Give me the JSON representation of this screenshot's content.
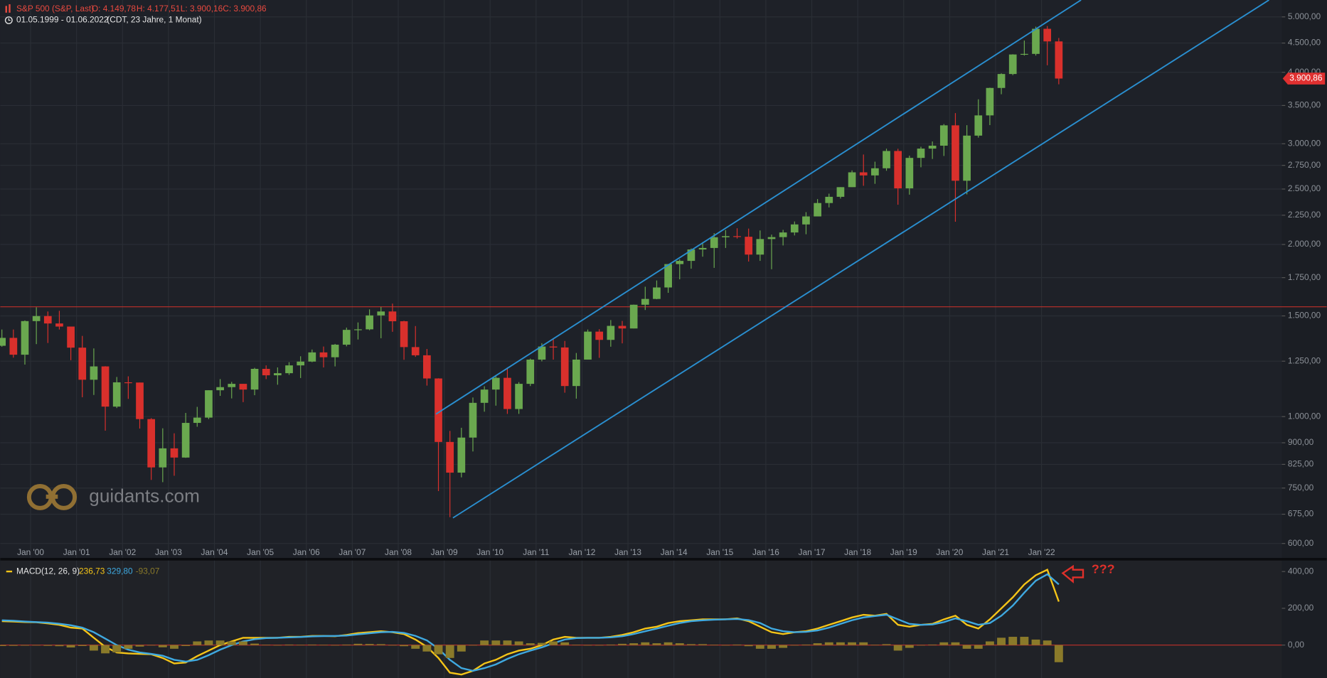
{
  "chart_data": [
    {
      "type": "candlestick",
      "title": "S&P 500 (S&P, Last)",
      "ohlc": [
        {
          "value": 4149.78,
          "label": "O: 4.149,78"
        },
        {
          "value": 4177.51,
          "label": "H: 4.177,51"
        },
        {
          "value": 3900.16,
          "label": "L: 3.900,16"
        },
        {
          "value": 3900.86,
          "label": "C: 3.900,86"
        }
      ],
      "period": "01.05.1999 - 01.06.2022",
      "period_note": "(CDT, 23 Jahre, 1 Monat)",
      "watermark": "guidants.com",
      "log_scale": true,
      "grid": true,
      "up_color": "#6aa84f",
      "down_color": "#d9302c",
      "x": [
        1999.375,
        1999.625,
        1999.875,
        2000.125,
        2000.375,
        2000.625,
        2000.875,
        2001.125,
        2001.375,
        2001.625,
        2001.875,
        2002.125,
        2002.375,
        2002.625,
        2002.875,
        2003.125,
        2003.375,
        2003.625,
        2003.875,
        2004.125,
        2004.375,
        2004.625,
        2004.875,
        2005.125,
        2005.375,
        2005.625,
        2005.875,
        2006.125,
        2006.375,
        2006.625,
        2006.875,
        2007.125,
        2007.375,
        2007.625,
        2007.875,
        2008.125,
        2008.375,
        2008.625,
        2008.875,
        2009.125,
        2009.375,
        2009.625,
        2009.875,
        2010.125,
        2010.375,
        2010.625,
        2010.875,
        2011.125,
        2011.375,
        2011.625,
        2011.875,
        2012.125,
        2012.375,
        2012.625,
        2012.875,
        2013.125,
        2013.375,
        2013.625,
        2013.875,
        2014.125,
        2014.375,
        2014.625,
        2014.875,
        2015.125,
        2015.375,
        2015.625,
        2015.875,
        2016.125,
        2016.375,
        2016.625,
        2016.875,
        2017.125,
        2017.375,
        2017.625,
        2017.875,
        2018.125,
        2018.375,
        2018.625,
        2018.875,
        2019.125,
        2019.375,
        2019.625,
        2019.875,
        2020.125,
        2020.375,
        2020.625,
        2020.875,
        2021.125,
        2021.375,
        2021.625,
        2021.875,
        2022.125,
        2022.375
      ],
      "open": [
        1330,
        1373,
        1283,
        1469,
        1499,
        1455,
        1437,
        1320,
        1160,
        1224,
        1041,
        1148,
        1147,
        990,
        815,
        880,
        848,
        975,
        996,
        1112,
        1126,
        1141,
        1115,
        1212,
        1181,
        1191,
        1229,
        1248,
        1295,
        1270,
        1336,
        1418,
        1421,
        1503,
        1527,
        1468,
        1323,
        1280,
        1166,
        903,
        798,
        919,
        1057,
        1115,
        1169,
        1031,
        1141,
        1258,
        1326,
        1321,
        1131,
        1258,
        1408,
        1362,
        1441,
        1426,
        1569,
        1606,
        1682,
        1848,
        1872,
        1960,
        1972,
        2059,
        2068,
        2063,
        1920,
        2044,
        2060,
        2099,
        2168,
        2239,
        2363,
        2423,
        2519,
        2674,
        2641,
        2718,
        2914,
        2507,
        2834,
        2942,
        2977,
        3231,
        2585,
        3100,
        3363,
        3756,
        3973,
        4298,
        4308,
        4766,
        4530
      ],
      "high": [
        1420,
        1420,
        1473,
        1553,
        1527,
        1531,
        1437,
        1384,
        1316,
        1225,
        1173,
        1176,
        1147,
        994,
        954,
        935,
        1015,
        1040,
        1112,
        1163,
        1150,
        1141,
        1217,
        1229,
        1219,
        1245,
        1275,
        1310,
        1326,
        1340,
        1431,
        1461,
        1540,
        1555,
        1576,
        1471,
        1440,
        1313,
        1167,
        944,
        956,
        1080,
        1130,
        1180,
        1219,
        1149,
        1263,
        1344,
        1371,
        1356,
        1292,
        1420,
        1422,
        1475,
        1470,
        1570,
        1687,
        1730,
        1849,
        1884,
        1968,
        2019,
        2093,
        2119,
        2135,
        2132,
        2116,
        2081,
        2121,
        2194,
        2278,
        2401,
        2454,
        2519,
        2695,
        2873,
        2791,
        2941,
        2940,
        2860,
        2964,
        3028,
        3248,
        3394,
        3233,
        3588,
        3760,
        3984,
        4302,
        4546,
        4808,
        4819,
        4593
      ],
      "low": [
        1325,
        1268,
        1233,
        1339,
        1345,
        1420,
        1255,
        1081,
        1091,
        945,
        1035,
        1074,
        953,
        775,
        768,
        788,
        847,
        960,
        990,
        1087,
        1076,
        1060,
        1090,
        1163,
        1137,
        1183,
        1168,
        1245,
        1219,
        1224,
        1327,
        1364,
        1416,
        1371,
        1407,
        1257,
        1272,
        1133,
        741,
        667,
        783,
        869,
        1020,
        1045,
        1011,
        1011,
        1131,
        1249,
        1258,
        1101,
        1075,
        1258,
        1267,
        1325,
        1343,
        1426,
        1536,
        1604,
        1646,
        1738,
        1814,
        1904,
        1820,
        1972,
        2048,
        1867,
        1872,
        1810,
        1992,
        2074,
        2084,
        2245,
        2322,
        2406,
        2520,
        2533,
        2553,
        2691,
        2347,
        2444,
        2729,
        2822,
        2856,
        2192,
        2447,
        3075,
        3234,
        3662,
        3955,
        4279,
        4279,
        4115,
        3811
      ],
      "close": [
        1373,
        1283,
        1469,
        1499,
        1455,
        1437,
        1320,
        1160,
        1224,
        1041,
        1148,
        1147,
        990,
        815,
        880,
        848,
        975,
        996,
        1112,
        1126,
        1141,
        1115,
        1212,
        1181,
        1191,
        1229,
        1248,
        1295,
        1270,
        1336,
        1418,
        1421,
        1503,
        1527,
        1468,
        1323,
        1280,
        1166,
        903,
        798,
        919,
        1057,
        1115,
        1169,
        1031,
        1141,
        1258,
        1326,
        1321,
        1131,
        1258,
        1408,
        1362,
        1441,
        1426,
        1569,
        1606,
        1682,
        1848,
        1872,
        1960,
        1972,
        2059,
        2068,
        2063,
        1920,
        2044,
        2060,
        2099,
        2168,
        2239,
        2363,
        2423,
        2519,
        2674,
        2641,
        2718,
        2914,
        2507,
        2834,
        2942,
        2977,
        3231,
        2585,
        3100,
        3363,
        3756,
        3973,
        4298,
        4308,
        4766,
        4530,
        3901
      ],
      "xlim": [
        1999.34,
        2027.23
      ],
      "xticks": [
        {
          "value": 2000,
          "label": "Jan '00"
        },
        {
          "value": 2001,
          "label": "Jan '01"
        },
        {
          "value": 2002,
          "label": "Jan '02"
        },
        {
          "value": 2003,
          "label": "Jan '03"
        },
        {
          "value": 2004,
          "label": "Jan '04"
        },
        {
          "value": 2005,
          "label": "Jan '05"
        },
        {
          "value": 2006,
          "label": "Jan '06"
        },
        {
          "value": 2007,
          "label": "Jan '07"
        },
        {
          "value": 2008,
          "label": "Jan '08"
        },
        {
          "value": 2009,
          "label": "Jan '09"
        },
        {
          "value": 2010,
          "label": "Jan '10"
        },
        {
          "value": 2011,
          "label": "Jan '11"
        },
        {
          "value": 2012,
          "label": "Jan '12"
        },
        {
          "value": 2013,
          "label": "Jan '13"
        },
        {
          "value": 2014,
          "label": "Jan '14"
        },
        {
          "value": 2015,
          "label": "Jan '15"
        },
        {
          "value": 2016,
          "label": "Jan '16"
        },
        {
          "value": 2017,
          "label": "Jan '17"
        },
        {
          "value": 2018,
          "label": "Jan '18"
        },
        {
          "value": 2019,
          "label": "Jan '19"
        },
        {
          "value": 2020,
          "label": "Jan '20"
        },
        {
          "value": 2021,
          "label": "Jan '21"
        },
        {
          "value": 2022,
          "label": "Jan '22"
        }
      ],
      "ylim": [
        566,
        5352
      ],
      "yticks": [
        {
          "value": 5000,
          "label": "5.000,00"
        },
        {
          "value": 4500,
          "label": "4.500,00"
        },
        {
          "value": 4000,
          "label": "4.000,00"
        },
        {
          "value": 3500,
          "label": "3.500,00"
        },
        {
          "value": 3000,
          "label": "3.000,00"
        },
        {
          "value": 2750,
          "label": "2.750,00"
        },
        {
          "value": 2500,
          "label": "2.500,00"
        },
        {
          "value": 2250,
          "label": "2.250,00"
        },
        {
          "value": 2000,
          "label": "2.000,00"
        },
        {
          "value": 1750,
          "label": "1.750,00"
        },
        {
          "value": 1500,
          "label": "1.500,00"
        },
        {
          "value": 1250,
          "label": "1.250,00"
        },
        {
          "value": 1000,
          "label": "1.000,00"
        },
        {
          "value": 900,
          "label": "900,00"
        },
        {
          "value": 825,
          "label": "825,00"
        },
        {
          "value": 750,
          "label": "750,00"
        },
        {
          "value": 675,
          "label": "675,00"
        },
        {
          "value": 600,
          "label": "600,00"
        }
      ],
      "last_price": {
        "value": 3900.86,
        "label": "3.900,86"
      },
      "hline": {
        "value": 1556,
        "color": "#c0302a"
      },
      "trendlines": [
        {
          "x": [
            2008.82,
            2022.86
          ],
          "y": [
            1010,
            5352
          ],
          "color": "#2a8fd0"
        },
        {
          "x": [
            2009.19,
            2026.95
          ],
          "y": [
            665,
            5352
          ],
          "color": "#2a8fd0"
        }
      ]
    },
    {
      "type": "macd",
      "title": "MACD(12, 26, 9)",
      "legend_values": [
        {
          "value": 236.73,
          "label": "236,73"
        },
        {
          "value": 329.8,
          "label": "329,80"
        },
        {
          "value": -93.07,
          "label": "-93,07"
        }
      ],
      "annotation": "???",
      "xlim": [
        1999.34,
        2027.23
      ],
      "x": [
        1999.375,
        1999.625,
        1999.875,
        2000.125,
        2000.375,
        2000.625,
        2000.875,
        2001.125,
        2001.375,
        2001.625,
        2001.875,
        2002.125,
        2002.375,
        2002.625,
        2002.875,
        2003.125,
        2003.375,
        2003.625,
        2003.875,
        2004.125,
        2004.375,
        2004.625,
        2004.875,
        2005.125,
        2005.375,
        2005.625,
        2005.875,
        2006.125,
        2006.375,
        2006.625,
        2006.875,
        2007.125,
        2007.375,
        2007.625,
        2007.875,
        2008.125,
        2008.375,
        2008.625,
        2008.875,
        2009.125,
        2009.375,
        2009.625,
        2009.875,
        2010.125,
        2010.375,
        2010.625,
        2010.875,
        2011.125,
        2011.375,
        2011.625,
        2011.875,
        2012.125,
        2012.375,
        2012.625,
        2012.875,
        2013.125,
        2013.375,
        2013.625,
        2013.875,
        2014.125,
        2014.375,
        2014.625,
        2014.875,
        2015.125,
        2015.375,
        2015.625,
        2015.875,
        2016.125,
        2016.375,
        2016.625,
        2016.875,
        2017.125,
        2017.375,
        2017.625,
        2017.875,
        2018.125,
        2018.375,
        2018.625,
        2018.875,
        2019.125,
        2019.375,
        2019.625,
        2019.875,
        2020.125,
        2020.375,
        2020.625,
        2020.875,
        2021.125,
        2021.375,
        2021.625,
        2021.875,
        2022.125,
        2022.375
      ],
      "series": [
        {
          "kind": "line",
          "color": "#f5c518",
          "values": [
            130,
            128,
            125,
            124,
            118,
            110,
            95,
            90,
            40,
            -10,
            -40,
            -45,
            -48,
            -50,
            -70,
            -100,
            -95,
            -60,
            -30,
            0,
            20,
            40,
            40,
            40,
            40,
            45,
            45,
            50,
            50,
            48,
            55,
            65,
            70,
            75,
            70,
            60,
            30,
            -10,
            -70,
            -150,
            -160,
            -140,
            -100,
            -80,
            -50,
            -30,
            -20,
            0,
            30,
            45,
            40,
            40,
            40,
            45,
            55,
            70,
            90,
            100,
            120,
            130,
            135,
            140,
            140,
            140,
            145,
            130,
            100,
            70,
            60,
            70,
            75,
            90,
            110,
            130,
            150,
            165,
            160,
            170,
            110,
            100,
            110,
            115,
            140,
            160,
            110,
            90,
            140,
            200,
            260,
            330,
            380,
            410,
            236.73
          ]
        },
        {
          "kind": "line",
          "color": "#3fa9e0",
          "values": [
            135,
            132,
            128,
            125,
            122,
            116,
            108,
            95,
            70,
            35,
            0,
            -25,
            -40,
            -48,
            -58,
            -80,
            -90,
            -80,
            -55,
            -25,
            0,
            20,
            32,
            38,
            40,
            42,
            44,
            47,
            49,
            50,
            52,
            58,
            64,
            70,
            72,
            66,
            50,
            25,
            -20,
            -80,
            -125,
            -140,
            -125,
            -105,
            -75,
            -50,
            -30,
            -12,
            10,
            30,
            38,
            40,
            40,
            42,
            48,
            60,
            75,
            90,
            105,
            120,
            130,
            135,
            138,
            140,
            142,
            136,
            120,
            90,
            75,
            70,
            72,
            80,
            95,
            115,
            135,
            150,
            158,
            165,
            140,
            115,
            110,
            112,
            125,
            145,
            130,
            110,
            120,
            160,
            215,
            285,
            350,
            385,
            329.8
          ]
        },
        {
          "kind": "histogram",
          "color": "#8a7a2a",
          "values": [
            -5,
            -4,
            -3,
            -1,
            -4,
            -6,
            -13,
            -5,
            -30,
            -45,
            -40,
            -20,
            -8,
            -2,
            -12,
            -20,
            -5,
            20,
            25,
            25,
            20,
            20,
            8,
            2,
            0,
            3,
            1,
            3,
            1,
            -2,
            3,
            7,
            6,
            5,
            -2,
            -6,
            -20,
            -35,
            -50,
            -70,
            -35,
            0,
            25,
            25,
            25,
            20,
            10,
            12,
            20,
            15,
            2,
            0,
            0,
            3,
            7,
            10,
            15,
            10,
            15,
            10,
            5,
            5,
            2,
            0,
            3,
            -6,
            -20,
            -20,
            -15,
            0,
            3,
            10,
            15,
            15,
            15,
            15,
            2,
            5,
            -30,
            -15,
            0,
            3,
            15,
            15,
            -20,
            -20,
            20,
            40,
            45,
            45,
            30,
            25,
            -93.07
          ]
        }
      ],
      "ylim": [
        -179,
        460
      ],
      "yticks": [
        {
          "value": 400,
          "label": "400,00"
        },
        {
          "value": 200,
          "label": "200,00"
        },
        {
          "value": 0,
          "label": "0,00"
        }
      ],
      "zero_line_color": "#c0302a"
    }
  ]
}
